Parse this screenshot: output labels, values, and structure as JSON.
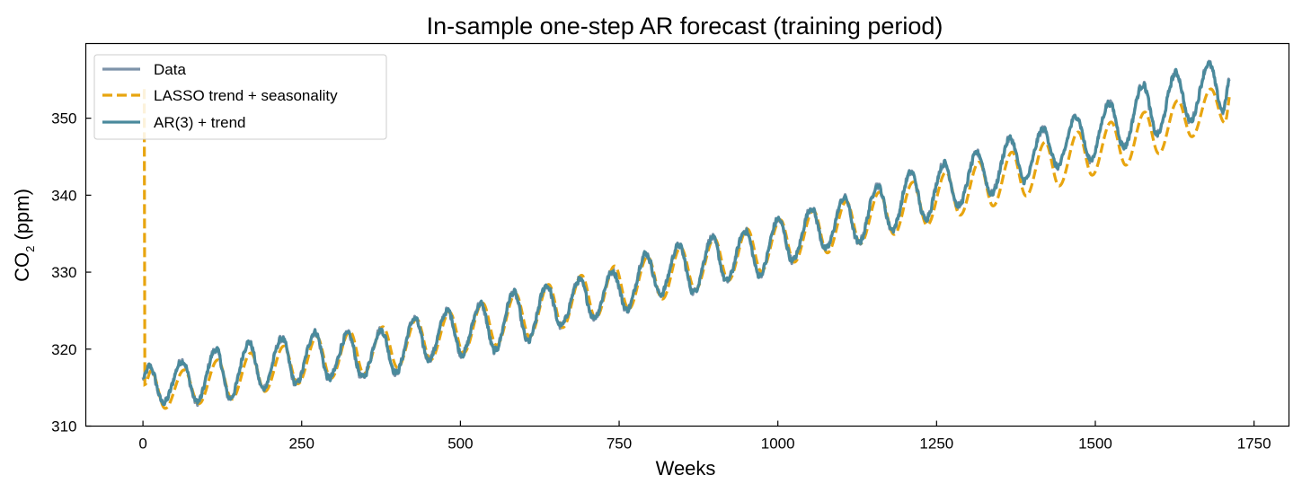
{
  "chart_data": {
    "type": "line",
    "title": "In-sample one-step AR forecast (training period)",
    "xlabel": "Weeks",
    "ylabel": {
      "prefix": "CO",
      "subscript": "2",
      "suffix": " (ppm)"
    },
    "xlim": [
      -90,
      1805
    ],
    "ylim": [
      310,
      359.7
    ],
    "xticks": [
      0,
      250,
      500,
      750,
      1000,
      1250,
      1500,
      1750
    ],
    "yticks": [
      310,
      320,
      330,
      340,
      350
    ],
    "xtick_labels": [
      "0",
      "250",
      "500",
      "750",
      "1000",
      "1250",
      "1500",
      "1750"
    ],
    "ytick_labels": [
      "310",
      "320",
      "330",
      "340",
      "350"
    ],
    "grid": false,
    "legend_position": "top-left",
    "n_points": 1712,
    "series": [
      {
        "name": "Data",
        "color": "#7d93aa",
        "style": "solid"
      },
      {
        "name": "LASSO trend + seasonality",
        "color": "#e8a50f",
        "style": "dashed"
      },
      {
        "name": "AR(3) + trend",
        "color": "#4a8a9c",
        "style": "solid"
      }
    ],
    "seasonal_extrema": {
      "x_max": [
        10,
        62,
        115,
        167,
        219,
        271,
        323,
        375,
        428,
        480,
        532,
        584,
        636,
        688,
        740,
        792,
        844,
        897,
        949,
        1001,
        1053,
        1105,
        1157,
        1210,
        1262,
        1314,
        1366,
        1418,
        1470,
        1522,
        1575,
        1627,
        1679
      ],
      "y_max": [
        317.8,
        318.5,
        320.0,
        320.9,
        321.4,
        322.2,
        322.0,
        322.5,
        324.0,
        325.0,
        325.9,
        327.4,
        328.3,
        329.0,
        330.1,
        332.4,
        333.5,
        334.5,
        335.4,
        336.9,
        338.3,
        339.7,
        341.3,
        343.0,
        344.1,
        345.5,
        347.4,
        348.6,
        350.3,
        352.0,
        354.4,
        355.9,
        357.1
      ],
      "x_min": [
        32,
        85,
        137,
        189,
        241,
        293,
        345,
        398,
        450,
        502,
        554,
        606,
        658,
        710,
        762,
        815,
        867,
        919,
        971,
        1023,
        1075,
        1127,
        1180,
        1232,
        1284,
        1336,
        1388,
        1440,
        1492,
        1545,
        1597,
        1649,
        1701
      ],
      "y_min": [
        313.0,
        313.1,
        313.6,
        314.9,
        315.5,
        316.2,
        316.3,
        316.9,
        318.7,
        319.3,
        319.8,
        321.0,
        323.0,
        324.1,
        325.1,
        327.1,
        327.4,
        328.8,
        329.6,
        331.5,
        333.0,
        333.8,
        335.5,
        336.9,
        338.6,
        340.2,
        341.9,
        343.7,
        344.6,
        346.3,
        347.9,
        349.6,
        350.9
      ]
    },
    "lasso_extrema": {
      "y_max": [
        317.2,
        317.3,
        318.6,
        319.5,
        320.4,
        321.6,
        322.3,
        322.9,
        323.9,
        324.8,
        326.0,
        327.2,
        328.4,
        329.6,
        330.8,
        332.0,
        333.2,
        334.4,
        335.6,
        336.8,
        338.0,
        339.2,
        340.4,
        341.7,
        343.0,
        344.3,
        345.6,
        346.9,
        348.2,
        349.5,
        350.8,
        352.3,
        353.8
      ],
      "y_min": [
        312.3,
        312.9,
        313.5,
        314.5,
        315.5,
        316.2,
        316.8,
        317.6,
        318.6,
        319.5,
        320.5,
        321.6,
        322.8,
        324.0,
        325.2,
        326.5,
        327.7,
        328.9,
        330.1,
        331.3,
        332.5,
        333.7,
        334.9,
        336.1,
        337.4,
        338.6,
        339.9,
        341.2,
        342.6,
        343.9,
        345.4,
        347.6,
        349.4
      ]
    }
  }
}
